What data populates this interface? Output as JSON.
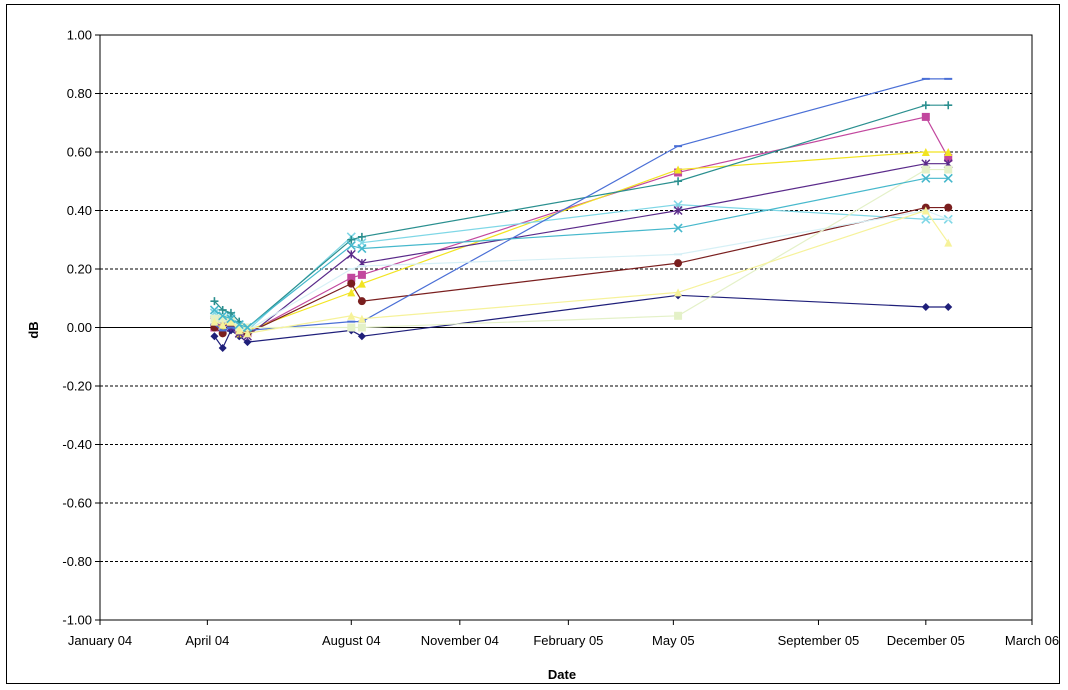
{
  "chart_data": {
    "type": "line",
    "title": "",
    "xlabel": "Date",
    "ylabel": "dB",
    "ylim": [
      -1.0,
      1.0
    ],
    "y_ticks": [
      "1.00",
      "0.80",
      "0.60",
      "0.40",
      "0.20",
      "0.00",
      "-0.20",
      "-0.40",
      "-0.60",
      "-0.80",
      "-1.00"
    ],
    "x_axis": {
      "scale": "date",
      "range": [
        "2004-01-01",
        "2006-03-01"
      ],
      "ticks": [
        {
          "date": "2004-01-01",
          "label": "January 04"
        },
        {
          "date": "2004-04-01",
          "label": "April 04"
        },
        {
          "date": "2004-08-01",
          "label": "August 04"
        },
        {
          "date": "2004-11-01",
          "label": "November 04"
        },
        {
          "date": "2005-02-01",
          "label": "February 05"
        },
        {
          "date": "2005-05-01",
          "label": "May 05"
        },
        {
          "date": "2005-09-01",
          "label": "September 05"
        },
        {
          "date": "2005-12-01",
          "label": "December 05"
        },
        {
          "date": "2006-03-01",
          "label": "March 06"
        }
      ]
    },
    "grid": {
      "horizontal": true,
      "style": "dashed"
    },
    "legend": "none",
    "series": [
      {
        "color": "#1f1f7a",
        "marker": "diamond",
        "x": [
          "2004-04-07",
          "2004-04-14",
          "2004-04-21",
          "2004-04-28",
          "2004-05-05",
          "2004-08-01",
          "2004-08-10",
          "2005-05-05",
          "2005-12-01",
          "2005-12-20"
        ],
        "y": [
          -0.03,
          -0.07,
          -0.01,
          -0.03,
          -0.05,
          -0.01,
          -0.03,
          0.11,
          0.07,
          0.07
        ]
      },
      {
        "color": "#c2479e",
        "marker": "square",
        "x": [
          "2004-04-07",
          "2004-04-14",
          "2004-04-21",
          "2004-04-28",
          "2004-05-05",
          "2004-08-01",
          "2004-08-10",
          "2005-05-05",
          "2005-12-01",
          "2005-12-20"
        ],
        "y": [
          0.0,
          0.02,
          0.01,
          -0.01,
          -0.02,
          0.17,
          0.18,
          0.53,
          0.72,
          0.58
        ]
      },
      {
        "color": "#f2e422",
        "marker": "triangle",
        "x": [
          "2004-04-07",
          "2004-04-14",
          "2004-04-21",
          "2004-04-28",
          "2004-05-05",
          "2004-08-01",
          "2004-08-10",
          "2005-05-05",
          "2005-12-01",
          "2005-12-20"
        ],
        "y": [
          0.01,
          0.0,
          0.03,
          -0.02,
          -0.01,
          0.12,
          0.15,
          0.54,
          0.6,
          0.6
        ]
      },
      {
        "color": "#7fd7e6",
        "marker": "x",
        "x": [
          "2004-04-07",
          "2004-04-14",
          "2004-04-21",
          "2004-04-28",
          "2004-05-05",
          "2004-08-01",
          "2004-08-10",
          "2005-05-05",
          "2005-12-01",
          "2005-12-20"
        ],
        "y": [
          0.05,
          0.03,
          0.04,
          0.0,
          -0.01,
          0.31,
          0.29,
          0.42,
          0.37,
          0.37
        ]
      },
      {
        "color": "#5a2a8a",
        "marker": "star",
        "x": [
          "2004-04-07",
          "2004-04-14",
          "2004-04-21",
          "2004-04-28",
          "2004-05-05",
          "2004-08-01",
          "2004-08-10",
          "2005-05-05",
          "2005-12-01",
          "2005-12-20"
        ],
        "y": [
          0.02,
          0.01,
          0.0,
          -0.02,
          -0.03,
          0.25,
          0.22,
          0.4,
          0.56,
          0.56
        ]
      },
      {
        "color": "#7a1f1f",
        "marker": "circle",
        "x": [
          "2004-04-07",
          "2004-04-14",
          "2004-04-21",
          "2004-04-28",
          "2004-05-05",
          "2004-08-01",
          "2004-08-10",
          "2005-05-05",
          "2005-12-01",
          "2005-12-20"
        ],
        "y": [
          0.0,
          -0.02,
          0.01,
          -0.01,
          -0.02,
          0.15,
          0.09,
          0.22,
          0.41,
          0.41
        ]
      },
      {
        "color": "#2a8f8f",
        "marker": "plus",
        "x": [
          "2004-04-07",
          "2004-04-14",
          "2004-04-21",
          "2004-04-28",
          "2004-05-05",
          "2004-08-01",
          "2004-08-10",
          "2005-05-05",
          "2005-12-01",
          "2005-12-20"
        ],
        "y": [
          0.09,
          0.06,
          0.05,
          0.02,
          0.0,
          0.3,
          0.31,
          0.5,
          0.76,
          0.76
        ]
      },
      {
        "color": "#4a6fd6",
        "marker": "dash",
        "x": [
          "2004-04-07",
          "2004-04-14",
          "2004-04-21",
          "2004-04-28",
          "2004-05-05",
          "2004-08-01",
          "2004-08-10",
          "2005-05-05",
          "2005-12-01",
          "2005-12-20"
        ],
        "y": [
          0.01,
          -0.01,
          0.0,
          -0.01,
          -0.01,
          0.02,
          0.02,
          0.62,
          0.85,
          0.85
        ]
      },
      {
        "color": "#d6f0f6",
        "marker": "dash",
        "x": [
          "2004-04-07",
          "2004-04-14",
          "2004-04-21",
          "2004-04-28",
          "2004-05-05",
          "2004-08-01",
          "2004-08-10",
          "2005-05-05",
          "2005-12-01",
          "2005-12-20"
        ],
        "y": [
          0.04,
          0.02,
          0.03,
          0.0,
          -0.01,
          0.2,
          0.21,
          0.25,
          0.4,
          0.37
        ]
      },
      {
        "color": "#e4f1c8",
        "marker": "square",
        "x": [
          "2004-04-07",
          "2004-04-14",
          "2004-04-21",
          "2004-04-28",
          "2004-05-05",
          "2004-08-01",
          "2004-08-10",
          "2005-05-05",
          "2005-12-01",
          "2005-12-20"
        ],
        "y": [
          0.03,
          0.03,
          0.02,
          0.0,
          0.0,
          0.0,
          0.0,
          0.04,
          0.54,
          0.54
        ]
      },
      {
        "color": "#f6f29a",
        "marker": "triangle",
        "x": [
          "2004-04-07",
          "2004-04-14",
          "2004-04-21",
          "2004-04-28",
          "2004-05-05",
          "2004-08-01",
          "2004-08-10",
          "2005-05-05",
          "2005-12-01",
          "2005-12-20"
        ],
        "y": [
          0.02,
          0.01,
          0.02,
          -0.01,
          -0.02,
          0.04,
          0.03,
          0.12,
          0.4,
          0.29
        ]
      },
      {
        "color": "#46b8cc",
        "marker": "x",
        "x": [
          "2004-04-07",
          "2004-04-14",
          "2004-04-21",
          "2004-04-28",
          "2004-05-05",
          "2004-08-01",
          "2004-08-10",
          "2005-05-05",
          "2005-12-01",
          "2005-12-20"
        ],
        "y": [
          0.06,
          0.04,
          0.03,
          0.01,
          0.0,
          0.28,
          0.27,
          0.34,
          0.51,
          0.51
        ]
      }
    ]
  }
}
